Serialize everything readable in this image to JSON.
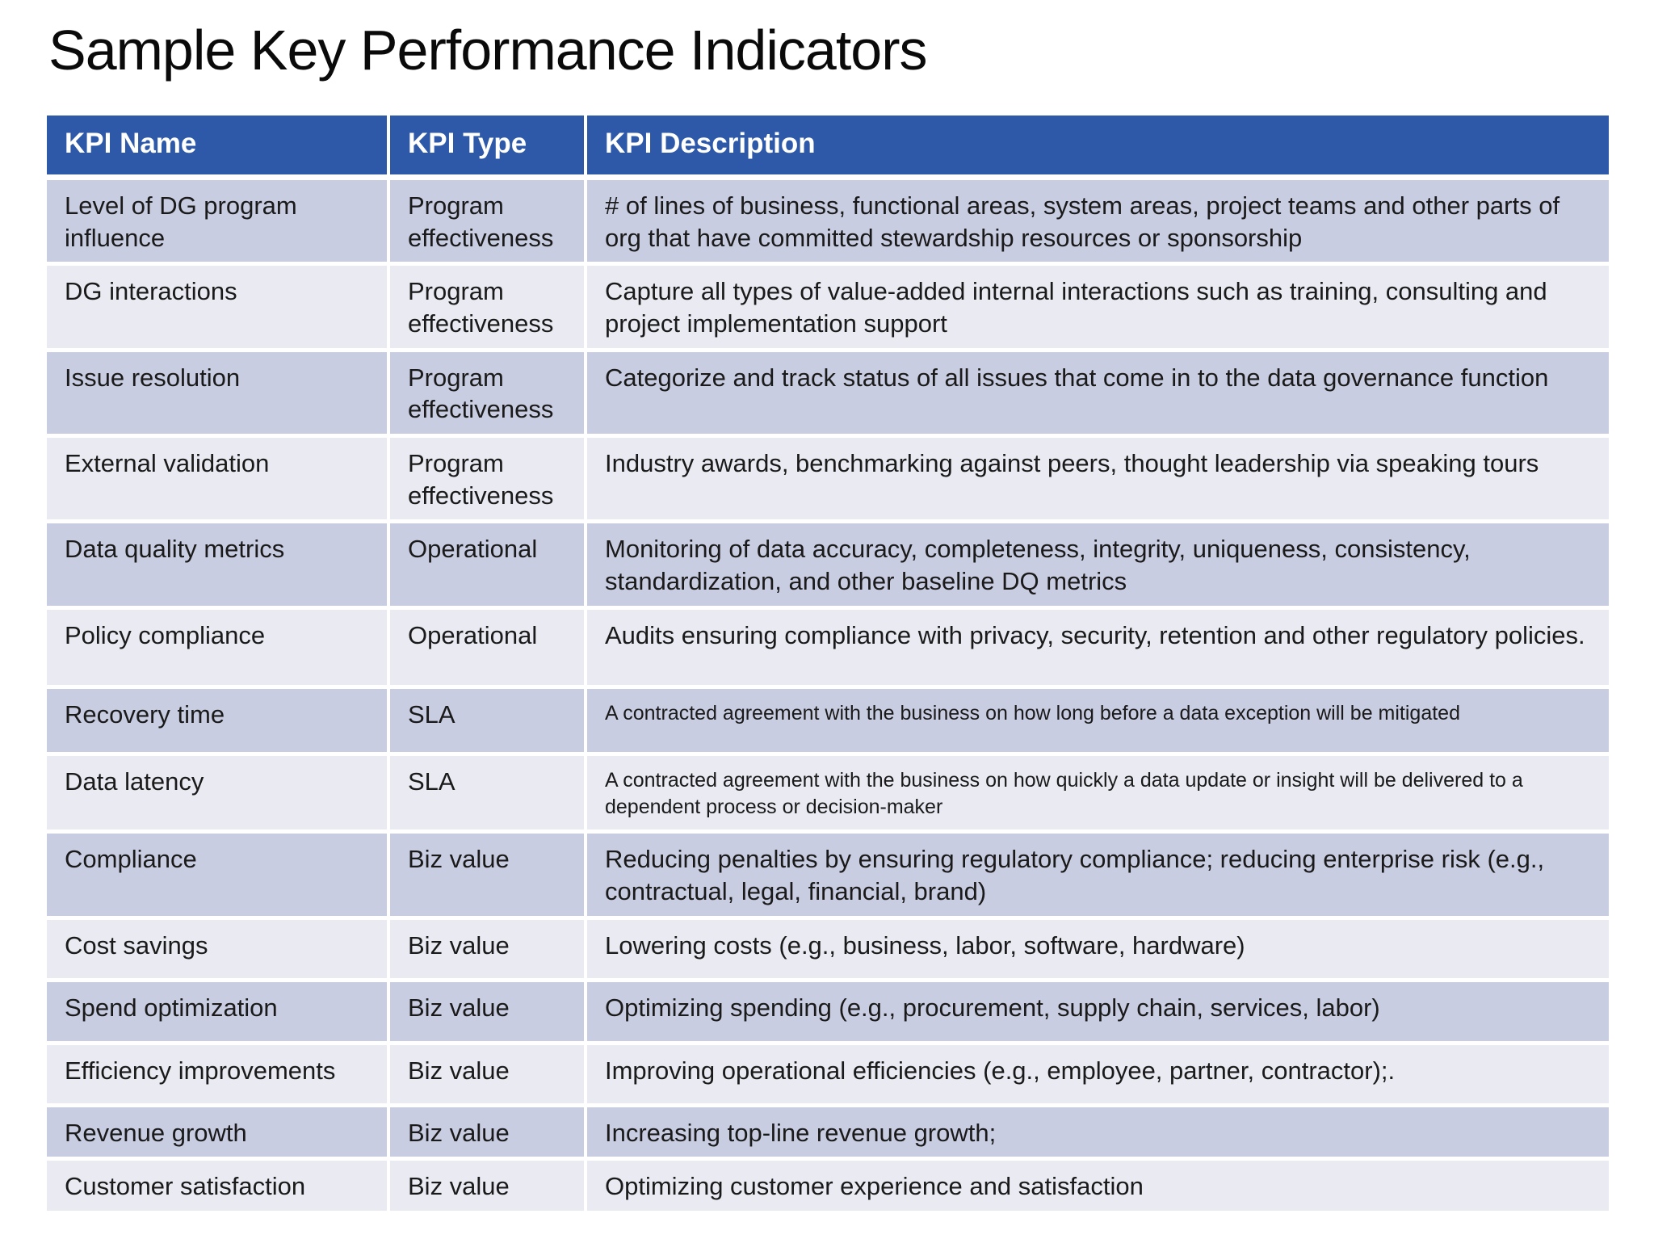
{
  "page": {
    "title": "Sample Key Performance Indicators"
  },
  "theme": {
    "page_bg": "#FFFFFF",
    "header_bg": "#2E58A8",
    "header_text": "#FFFFFF",
    "band_dark": "#C9CDE2",
    "band_light": "#E9EAF2"
  },
  "table": {
    "columns": [
      {
        "label": "KPI Name"
      },
      {
        "label": "KPI Type"
      },
      {
        "label": "KPI Description"
      }
    ],
    "rows": [
      {
        "name": "Level of DG program influence",
        "type": "Program effectiveness",
        "description": "# of lines of business, functional areas, system areas, project teams and other parts of org that have committed stewardship resources or sponsorship"
      },
      {
        "name": "DG interactions",
        "type": "Program effectiveness",
        "description": "Capture all types of value-added internal interactions such as training, consulting and project implementation support"
      },
      {
        "name": "Issue resolution",
        "type": "Program effectiveness",
        "description": "Categorize and track status of all issues that come in to the data governance function"
      },
      {
        "name": "External validation",
        "type": "Program effectiveness",
        "description": "Industry awards, benchmarking against peers, thought leadership via speaking tours"
      },
      {
        "name": "Data quality metrics",
        "type": "Operational",
        "description": "Monitoring of data accuracy, completeness, integrity, uniqueness, consistency, standardization, and other baseline DQ metrics"
      },
      {
        "name": "Policy compliance",
        "type": "Operational",
        "description": "Audits ensuring compliance with privacy, security, retention and other regulatory policies."
      },
      {
        "name": "Recovery time",
        "type": "SLA",
        "description": "A contracted agreement with the business on how long before a data exception will be mitigated"
      },
      {
        "name": "Data latency",
        "type": "SLA",
        "description": "A contracted agreement with the business on how quickly a data update or insight will be delivered to a dependent process or decision-maker"
      },
      {
        "name": "Compliance",
        "type": "Biz value",
        "description": "Reducing penalties by ensuring regulatory compliance; reducing enterprise risk (e.g., contractual, legal, financial, brand)"
      },
      {
        "name": "Cost savings",
        "type": "Biz value",
        "description": "Lowering costs (e.g., business, labor, software, hardware)"
      },
      {
        "name": "Spend optimization",
        "type": "Biz value",
        "description": "Optimizing spending (e.g., procurement, supply chain, services, labor)"
      },
      {
        "name": "Efficiency improvements",
        "type": "Biz value",
        "description": "Improving operational efficiencies (e.g., employee, partner, contractor);."
      },
      {
        "name": "Revenue growth",
        "type": "Biz value",
        "description": "Increasing top-line revenue growth;"
      },
      {
        "name": "Customer satisfaction",
        "type": "Biz value",
        "description": "Optimizing customer experience and satisfaction"
      }
    ]
  }
}
